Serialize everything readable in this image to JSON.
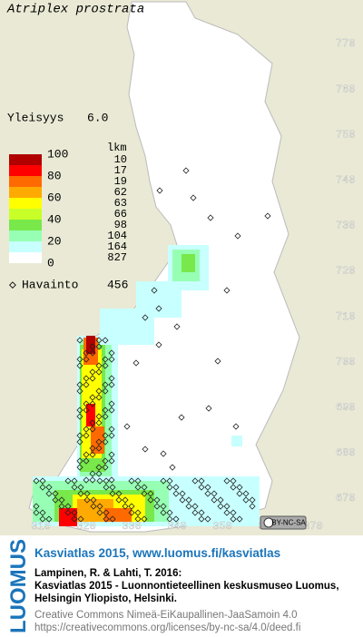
{
  "title": "Atriplex prostrata",
  "frequency": {
    "label": "Yleisyys",
    "value": "6.0"
  },
  "legend": {
    "scale_labels": [
      "100",
      "80",
      "60",
      "40",
      "20",
      "0"
    ],
    "count_header": "lkm",
    "counts": [
      "10",
      "17",
      "19",
      "62",
      "63",
      "66",
      "98",
      "104",
      "164",
      "827"
    ],
    "colors": [
      "#b00000",
      "#ff0000",
      "#ff6a00",
      "#ffaa00",
      "#ffff00",
      "#c8ff28",
      "#78e84a",
      "#96ffb4",
      "#c8ffff",
      "#ffffff"
    ]
  },
  "observations": {
    "label": "Havainto",
    "count": "456"
  },
  "northing_ticks": [
    770,
    760,
    750,
    740,
    730,
    720,
    710,
    700,
    690,
    680,
    670
  ],
  "easting_ticks": [
    310,
    320,
    330,
    340,
    350,
    360,
    370
  ],
  "license_badge": "BY-NC-SA",
  "footer": {
    "logo": "LUOMUS",
    "headline": "Kasviatlas 2015, www.luomus.fi/kasviatlas",
    "citation_1": "Lampinen, R. & Lahti, T. 2016:",
    "citation_2": "Kasviatlas 2015 - Luonnontieteellinen keskusmuseo Luomus,",
    "citation_3": "Helsingin Yliopisto, Helsinki.",
    "license_1": "Creative Commons Nimeä-EiKaupallinen-JaaSamoin 4.0",
    "license_2": "https://creativecommons.org/licenses/by-nc-sa/4.0/deed.fi"
  }
}
